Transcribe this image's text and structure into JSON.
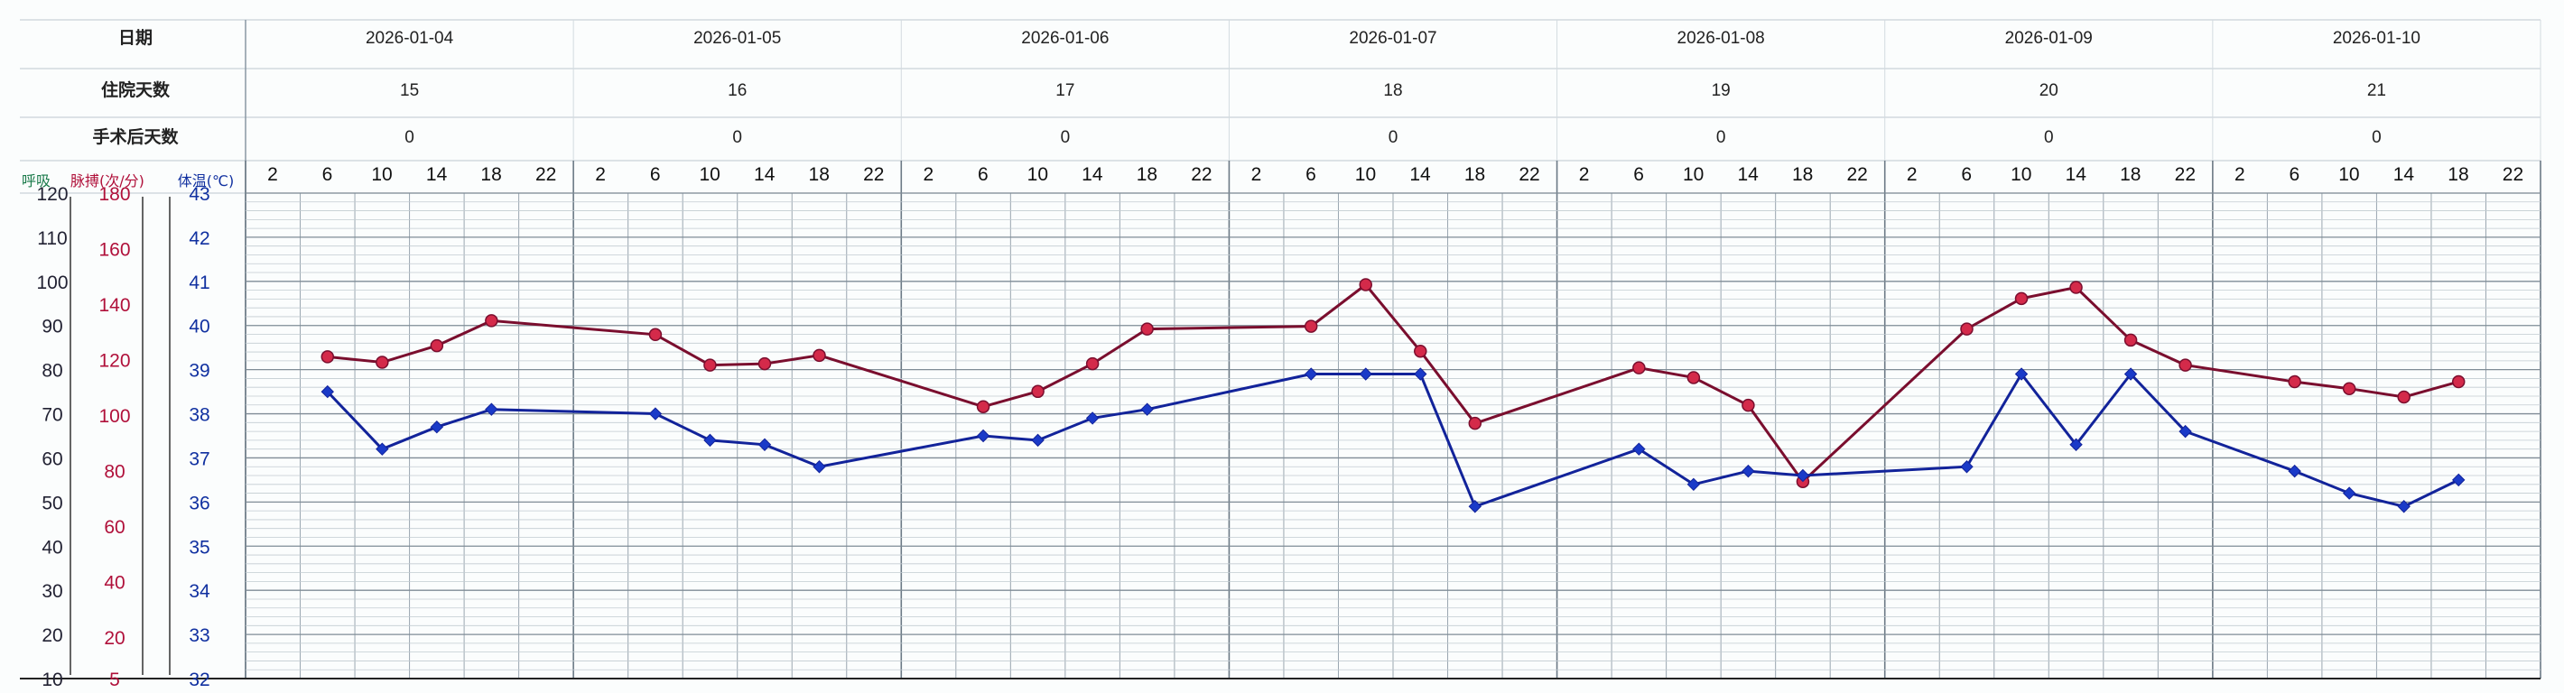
{
  "header": {
    "row_labels": {
      "date": "日期",
      "hospital_days": "住院天数",
      "post_op_days": "手术后天数"
    },
    "dates": [
      "2026-01-04",
      "2026-01-05",
      "2026-01-06",
      "2026-01-07",
      "2026-01-08",
      "2026-01-09",
      "2026-01-10"
    ],
    "hospital_days": [
      "15",
      "16",
      "17",
      "18",
      "19",
      "20",
      "21"
    ],
    "post_op_days": [
      "0",
      "0",
      "0",
      "0",
      "0",
      "0",
      "0"
    ]
  },
  "hours": [
    "2",
    "6",
    "10",
    "14",
    "18",
    "22"
  ],
  "axes": {
    "respiration": {
      "title": "呼吸",
      "ticks": [
        "120",
        "110",
        "100",
        "90",
        "80",
        "70",
        "60",
        "50",
        "40",
        "30",
        "20",
        "10"
      ],
      "color": "#1a7a4a"
    },
    "pulse": {
      "title": "脉搏(次/分)",
      "ticks": [
        "180",
        "160",
        "140",
        "120",
        "100",
        "80",
        "60",
        "40",
        "20",
        "5"
      ],
      "color": "#b0103a"
    },
    "temperature": {
      "title": "体温(℃)",
      "ticks": [
        "43",
        "42",
        "41",
        "40",
        "39",
        "38",
        "37",
        "36",
        "35",
        "34",
        "33",
        "32"
      ],
      "color": "#1030a0"
    }
  },
  "colors": {
    "pulse_line": "#7a0e2e",
    "pulse_marker": "#d42a4a",
    "temp_line": "#12239a",
    "temp_marker": "#1a3ac8",
    "grid": "#9aa6b0",
    "grid_day": "#6c7a86"
  },
  "chart_data": {
    "type": "line",
    "x_slots": [
      "2026-01-04 02",
      "2026-01-04 06",
      "2026-01-04 10",
      "2026-01-04 14",
      "2026-01-04 18",
      "2026-01-04 22",
      "2026-01-05 02",
      "2026-01-05 06",
      "2026-01-05 10",
      "2026-01-05 14",
      "2026-01-05 18",
      "2026-01-05 22",
      "2026-01-06 02",
      "2026-01-06 06",
      "2026-01-06 10",
      "2026-01-06 14",
      "2026-01-06 18",
      "2026-01-06 22",
      "2026-01-07 02",
      "2026-01-07 06",
      "2026-01-07 10",
      "2026-01-07 14",
      "2026-01-07 18",
      "2026-01-07 22",
      "2026-01-08 02",
      "2026-01-08 06",
      "2026-01-08 10",
      "2026-01-08 14",
      "2026-01-08 18",
      "2026-01-08 22",
      "2026-01-09 02",
      "2026-01-09 06",
      "2026-01-09 10",
      "2026-01-09 14",
      "2026-01-09 18",
      "2026-01-09 22",
      "2026-01-10 02",
      "2026-01-10 06",
      "2026-01-10 10",
      "2026-01-10 14",
      "2026-01-10 18",
      "2026-01-10 22"
    ],
    "series": [
      {
        "name": "脉搏(次/分)",
        "axis": "pulse",
        "ylim": [
          5,
          180
        ],
        "points": [
          {
            "slot": 1,
            "value": 121
          },
          {
            "slot": 2,
            "value": 119
          },
          {
            "slot": 3,
            "value": 125
          },
          {
            "slot": 4,
            "value": 134
          },
          {
            "slot": 7,
            "value": 129
          },
          {
            "slot": 8,
            "value": 118
          },
          {
            "slot": 9,
            "value": 118.5
          },
          {
            "slot": 10,
            "value": 121.5
          },
          {
            "slot": 13,
            "value": 103
          },
          {
            "slot": 14,
            "value": 108.5
          },
          {
            "slot": 15,
            "value": 118.5
          },
          {
            "slot": 16,
            "value": 131
          },
          {
            "slot": 19,
            "value": 132
          },
          {
            "slot": 20,
            "value": 147
          },
          {
            "slot": 21,
            "value": 123
          },
          {
            "slot": 22,
            "value": 97
          },
          {
            "slot": 25,
            "value": 117
          },
          {
            "slot": 26,
            "value": 113.5
          },
          {
            "slot": 27,
            "value": 103.5
          },
          {
            "slot": 28,
            "value": 76
          },
          {
            "slot": 31,
            "value": 131
          },
          {
            "slot": 32,
            "value": 142
          },
          {
            "slot": 33,
            "value": 146
          },
          {
            "slot": 34,
            "value": 127
          },
          {
            "slot": 35,
            "value": 118
          },
          {
            "slot": 37,
            "value": 112
          },
          {
            "slot": 38,
            "value": 109.5
          },
          {
            "slot": 39,
            "value": 106.5
          },
          {
            "slot": 40,
            "value": 112
          }
        ]
      },
      {
        "name": "体温(℃)",
        "axis": "temperature",
        "ylim": [
          32,
          43
        ],
        "points": [
          {
            "slot": 1,
            "value": 38.5
          },
          {
            "slot": 2,
            "value": 37.2
          },
          {
            "slot": 3,
            "value": 37.7
          },
          {
            "slot": 4,
            "value": 38.1
          },
          {
            "slot": 7,
            "value": 38.0
          },
          {
            "slot": 8,
            "value": 37.4
          },
          {
            "slot": 9,
            "value": 37.3
          },
          {
            "slot": 10,
            "value": 36.8
          },
          {
            "slot": 13,
            "value": 37.5
          },
          {
            "slot": 14,
            "value": 37.4
          },
          {
            "slot": 15,
            "value": 37.9
          },
          {
            "slot": 16,
            "value": 38.1
          },
          {
            "slot": 19,
            "value": 38.9
          },
          {
            "slot": 20,
            "value": 38.9
          },
          {
            "slot": 21,
            "value": 38.9
          },
          {
            "slot": 22,
            "value": 35.9
          },
          {
            "slot": 25,
            "value": 37.2
          },
          {
            "slot": 26,
            "value": 36.4
          },
          {
            "slot": 27,
            "value": 36.7
          },
          {
            "slot": 28,
            "value": 36.6
          },
          {
            "slot": 31,
            "value": 36.8
          },
          {
            "slot": 32,
            "value": 38.9
          },
          {
            "slot": 33,
            "value": 37.3
          },
          {
            "slot": 34,
            "value": 38.9
          },
          {
            "slot": 35,
            "value": 37.6
          },
          {
            "slot": 37,
            "value": 36.7
          },
          {
            "slot": 38,
            "value": 36.2
          },
          {
            "slot": 39,
            "value": 35.9
          },
          {
            "slot": 40,
            "value": 36.5
          }
        ]
      }
    ]
  }
}
